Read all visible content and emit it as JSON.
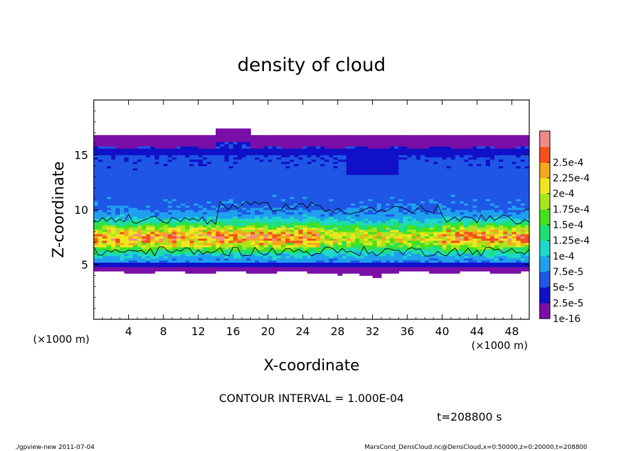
{
  "chart_data": {
    "type": "heatmap",
    "title": "density of cloud",
    "xlabel": "X-coordinate",
    "ylabel": "Z-coordinate",
    "x_unit": "(×1000 m)",
    "z_unit": "(×1000 m)",
    "xlim": [
      0,
      50
    ],
    "ylim": [
      0,
      20
    ],
    "x_ticks": [
      4,
      8,
      12,
      16,
      20,
      24,
      28,
      32,
      36,
      40,
      44,
      48
    ],
    "y_ticks": [
      5,
      10,
      15
    ],
    "colorbar": {
      "labels": [
        "1e-16",
        "2.5e-5",
        "5e-5",
        "7.5e-5",
        "1e-4",
        "1.25e-4",
        "1.5e-4",
        "1.75e-4",
        "2e-4",
        "2.25e-4",
        "2.5e-4"
      ],
      "colors": [
        "#7a0fa8",
        "#1010c8",
        "#1f56e6",
        "#1fa0ee",
        "#1ed8c8",
        "#1ee070",
        "#46e01e",
        "#a8e61e",
        "#f0e61e",
        "#f5a81e",
        "#f5501e",
        "#f08a8a"
      ]
    },
    "contour_interval": "CONTOUR INTERVAL = 1.000E-04",
    "contour_levels": [
      0.0001
    ],
    "cloud_profile": {
      "bottom_z": 4.3,
      "base_band_top_z": 5.2,
      "core_center_z": 7.5,
      "core_peak_density": 0.00017,
      "upper_layer_density": 4.5e-05,
      "dark_band_z": 15.3,
      "top_z": 16.8,
      "bump_x": [
        14,
        18
      ],
      "bump_top_z": 17.3,
      "dip_x": [
        31,
        33
      ],
      "dip_z": 13.2
    },
    "time_label": "t=208800 s"
  },
  "footer": {
    "left": "./gpview-new   2011-07-04",
    "right": "MarsCond_DensCloud.nc@DensCloud,x=0:50000,z=0:20000,t=208800"
  },
  "colors": {
    "frame": "#000000",
    "background": "#ffffff"
  }
}
